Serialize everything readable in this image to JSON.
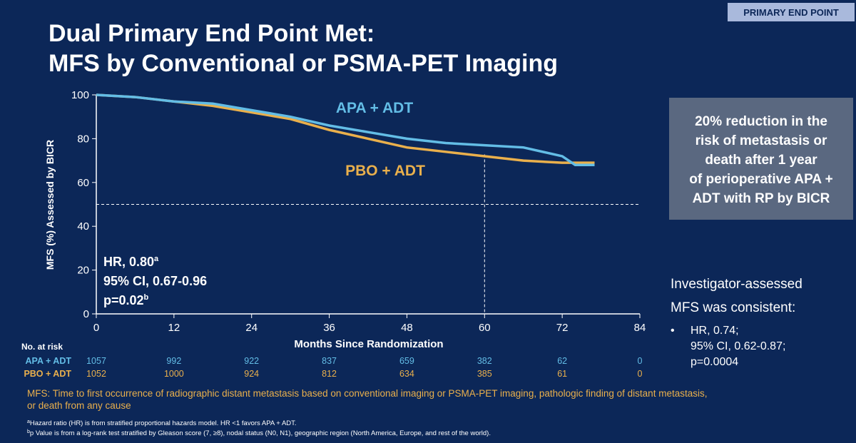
{
  "badge": "PRIMARY END POINT",
  "title_lines": [
    "Dual Primary End Point Met:",
    "MFS by Conventional or PSMA-PET Imaging"
  ],
  "callout_lines": [
    "20% reduction in the",
    "risk of metastasis or",
    "death after 1 year",
    "of perioperative APA +",
    "ADT with RP by BICR"
  ],
  "investigator": {
    "lines": [
      "Investigator-assessed",
      "MFS was consistent:"
    ],
    "bullet": "•",
    "items": [
      "HR, 0.74;",
      "95% CI, 0.62-0.87;",
      "p=0.0004"
    ]
  },
  "definition_lines": [
    "MFS: Time to first occurrence of radiographic distant metastasis based on conventional imaging or PSMA-PET imaging, pathologic finding of distant metastasis,",
    "or death from any cause"
  ],
  "footnotes": [
    {
      "mark": "a",
      "text": "Hazard ratio (HR) is from stratified proportional hazards model. HR <1 favors APA + ADT."
    },
    {
      "mark": "b",
      "text": "p Value is from a log-rank test stratified by Gleason score (7, ≥8), nodal status (N0, N1), geographic region (North America, Europe, and rest of the world)."
    }
  ],
  "chart_data": {
    "type": "line",
    "x_label": "Months Since Randomization",
    "y_label": "MFS (%) Assessed by BICR",
    "x": [
      0,
      6,
      12,
      18,
      24,
      30,
      36,
      42,
      48,
      54,
      60,
      66,
      72,
      74,
      77
    ],
    "series": [
      {
        "name": "APA + ADT",
        "color": "#63bde6",
        "values": [
          100,
          99,
          97,
          96,
          93,
          90,
          86,
          83,
          80,
          78,
          77,
          76,
          72,
          68,
          68
        ]
      },
      {
        "name": "PBO + ADT",
        "color": "#eab04c",
        "values": [
          100,
          99,
          97,
          95,
          92,
          89,
          84,
          80,
          76,
          74,
          72,
          70,
          69,
          69,
          69
        ]
      }
    ],
    "xlim": [
      0,
      84
    ],
    "xticks": [
      0,
      12,
      24,
      36,
      48,
      60,
      72,
      84
    ],
    "ylim": [
      0,
      100
    ],
    "yticks": [
      0,
      20,
      40,
      60,
      80,
      100
    ],
    "hline": 50,
    "vline": 60,
    "annotation": [
      {
        "text": "HR, 0.80",
        "sup": "a"
      },
      {
        "text": "95% CI, 0.67-0.96"
      },
      {
        "text": "p=0.02",
        "sup": "b"
      }
    ],
    "risk_table": {
      "title": "No. at risk",
      "rows": [
        {
          "name": "APA + ADT",
          "values": [
            1057,
            992,
            922,
            837,
            659,
            382,
            62,
            0
          ]
        },
        {
          "name": "PBO + ADT",
          "values": [
            1052,
            1000,
            924,
            812,
            634,
            385,
            61,
            0
          ]
        }
      ]
    }
  }
}
